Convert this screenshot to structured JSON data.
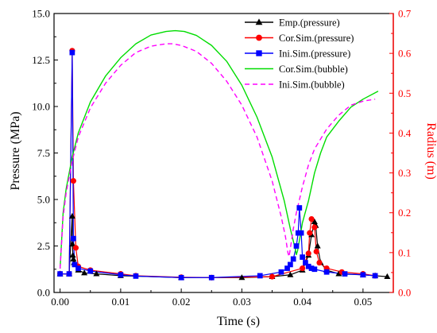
{
  "chart_data": {
    "type": "line",
    "xlabel": "Time (s)",
    "ylabel_left": "Pressure (MPa)",
    "ylabel_right": "Radius (m)",
    "xlim": [
      -0.001,
      0.055
    ],
    "ylim_left": [
      0.0,
      15.0
    ],
    "ylim_right": [
      0.0,
      0.7
    ],
    "x_ticks": [
      "0.00",
      "0.01",
      "0.02",
      "0.03",
      "0.04",
      "0.05"
    ],
    "x_tick_values": [
      0.0,
      0.01,
      0.02,
      0.03,
      0.04,
      0.05
    ],
    "y_left_ticks": [
      "0.0",
      "2.5",
      "5.0",
      "7.5",
      "10.0",
      "12.5",
      "15.0"
    ],
    "y_left_tick_values": [
      0.0,
      2.5,
      5.0,
      7.5,
      10.0,
      12.5,
      15.0
    ],
    "y_right_ticks": [
      "0.0",
      "0.1",
      "0.2",
      "0.3",
      "0.4",
      "0.5",
      "0.6",
      "0.7"
    ],
    "y_right_tick_values": [
      0.0,
      0.1,
      0.2,
      0.3,
      0.4,
      0.5,
      0.6,
      0.7
    ],
    "right_axis_color": "#ff0000",
    "legend_position": "top-right",
    "grid": false,
    "series": [
      {
        "name": "Emp.(pressure)",
        "axis": "left",
        "color": "#000000",
        "marker": "triangle",
        "line": "solid",
        "x": [
          0.0,
          0.0015,
          0.002,
          0.00205,
          0.0021,
          0.0022,
          0.0023,
          0.0025,
          0.003,
          0.004,
          0.006,
          0.01,
          0.02,
          0.03,
          0.035,
          0.038,
          0.04,
          0.041,
          0.0415,
          0.042,
          0.0422,
          0.0425,
          0.043,
          0.044,
          0.046,
          0.05,
          0.052,
          0.054
        ],
        "y": [
          1.0,
          1.0,
          4.1,
          2.6,
          2.0,
          1.8,
          1.6,
          1.5,
          1.2,
          1.05,
          1.0,
          0.9,
          0.8,
          0.8,
          0.85,
          0.95,
          1.2,
          2.0,
          3.1,
          3.8,
          3.6,
          2.5,
          1.6,
          1.2,
          1.0,
          0.95,
          0.9,
          0.85
        ]
      },
      {
        "name": "Cor.Sim.(pressure)",
        "axis": "left",
        "color": "#ff0000",
        "marker": "circle",
        "line": "solid",
        "x": [
          0.0,
          0.0015,
          0.002,
          0.0022,
          0.0026,
          0.003,
          0.005,
          0.01,
          0.0125,
          0.02,
          0.025,
          0.035,
          0.04,
          0.041,
          0.0412,
          0.0415,
          0.042,
          0.0423,
          0.0428,
          0.044,
          0.0465,
          0.05,
          0.052
        ],
        "y": [
          1.0,
          1.0,
          13.0,
          6.0,
          2.4,
          1.4,
          1.2,
          1.0,
          0.9,
          0.82,
          0.8,
          0.85,
          1.3,
          2.1,
          3.2,
          3.95,
          3.5,
          2.2,
          1.6,
          1.3,
          1.1,
          1.0,
          0.9
        ]
      },
      {
        "name": "Ini.Sim.(pressure)",
        "axis": "left",
        "color": "#0000ff",
        "marker": "square",
        "line": "solid",
        "x": [
          0.0,
          0.0015,
          0.002,
          0.0022,
          0.0024,
          0.003,
          0.005,
          0.01,
          0.0125,
          0.02,
          0.025,
          0.033,
          0.0365,
          0.0375,
          0.038,
          0.0385,
          0.039,
          0.0393,
          0.0395,
          0.0398,
          0.04,
          0.0405,
          0.041,
          0.0415,
          0.042,
          0.044,
          0.047,
          0.05,
          0.052
        ],
        "y": [
          1.0,
          1.0,
          12.9,
          2.9,
          1.5,
          1.3,
          1.15,
          0.95,
          0.88,
          0.8,
          0.8,
          0.9,
          1.1,
          1.3,
          1.5,
          1.8,
          2.5,
          3.2,
          4.55,
          3.2,
          1.9,
          1.6,
          1.4,
          1.3,
          1.25,
          1.1,
          1.0,
          0.95,
          0.9
        ]
      },
      {
        "name": "Cor.Sim.(bubble)",
        "axis": "right",
        "color": "#00dd00",
        "marker": "none",
        "line": "solid",
        "x": [
          0.0,
          0.0005,
          0.001,
          0.002,
          0.003,
          0.005,
          0.0075,
          0.01,
          0.0125,
          0.015,
          0.0175,
          0.019,
          0.0205,
          0.0225,
          0.025,
          0.0275,
          0.03,
          0.0325,
          0.035,
          0.037,
          0.038,
          0.0388,
          0.039,
          0.0392,
          0.0395,
          0.04,
          0.041,
          0.042,
          0.043,
          0.044,
          0.046,
          0.048,
          0.05,
          0.0525
        ],
        "y": [
          0.06,
          0.2,
          0.26,
          0.34,
          0.4,
          0.478,
          0.543,
          0.589,
          0.624,
          0.646,
          0.655,
          0.657,
          0.655,
          0.645,
          0.62,
          0.58,
          0.52,
          0.44,
          0.34,
          0.23,
          0.16,
          0.11,
          0.095,
          0.105,
          0.13,
          0.175,
          0.23,
          0.3,
          0.35,
          0.39,
          0.43,
          0.465,
          0.485,
          0.505
        ]
      },
      {
        "name": "Ini.Sim.(bubble)",
        "axis": "right",
        "color": "#ff00ff",
        "marker": "none",
        "line": "dashed",
        "x": [
          0.0,
          0.0005,
          0.001,
          0.002,
          0.003,
          0.005,
          0.0075,
          0.01,
          0.0125,
          0.015,
          0.0175,
          0.0185,
          0.02,
          0.0225,
          0.025,
          0.0275,
          0.03,
          0.0325,
          0.035,
          0.0365,
          0.0372,
          0.0376,
          0.0378,
          0.038,
          0.0385,
          0.039,
          0.04,
          0.041,
          0.042,
          0.044,
          0.046,
          0.048,
          0.05,
          0.052
        ],
        "y": [
          0.06,
          0.19,
          0.25,
          0.33,
          0.39,
          0.463,
          0.525,
          0.57,
          0.602,
          0.618,
          0.624,
          0.624,
          0.62,
          0.605,
          0.575,
          0.53,
          0.47,
          0.39,
          0.28,
          0.19,
          0.14,
          0.1,
          0.09,
          0.11,
          0.16,
          0.2,
          0.265,
          0.32,
          0.36,
          0.41,
          0.445,
          0.47,
          0.48,
          0.485
        ]
      }
    ]
  }
}
